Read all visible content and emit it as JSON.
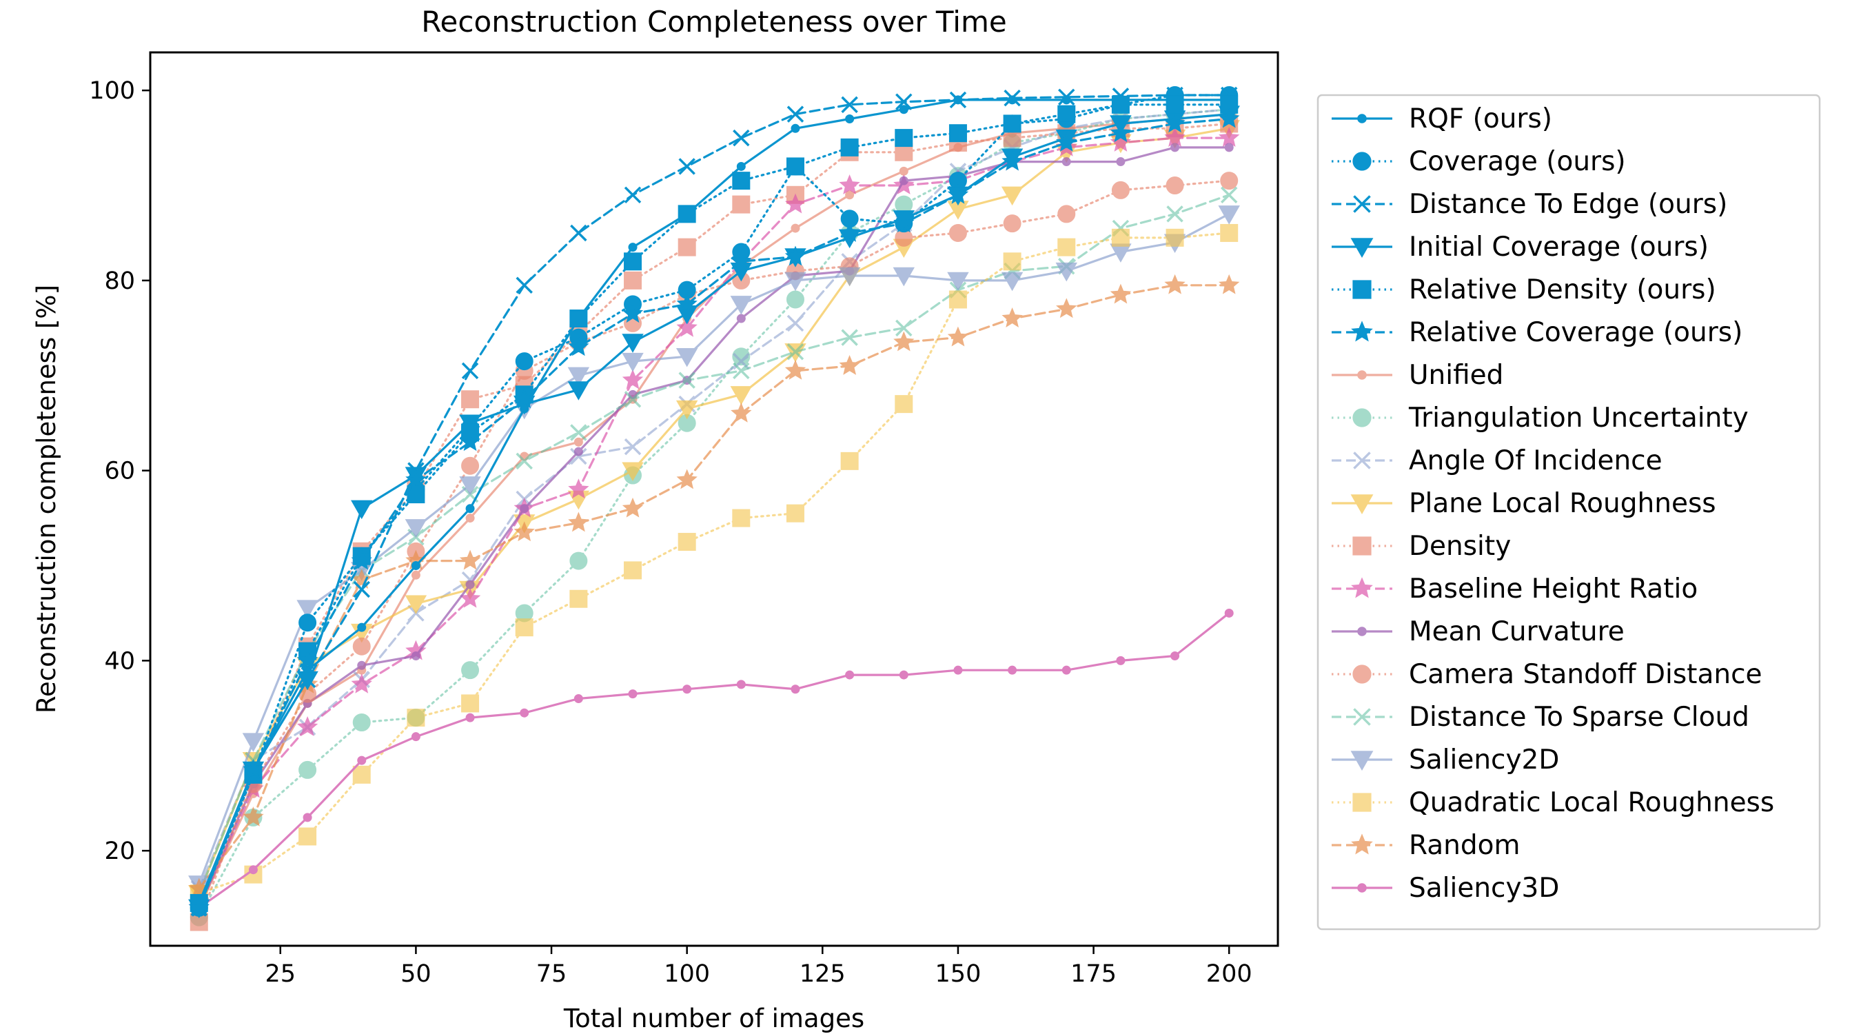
{
  "chart_data": {
    "type": "line",
    "title": "Reconstruction Completeness over Time",
    "xlabel": "Total number of images",
    "ylabel": "Reconstruction completeness [%]",
    "xlim": [
      1,
      209
    ],
    "ylim": [
      10,
      104
    ],
    "xticks": [
      25,
      50,
      75,
      100,
      125,
      150,
      175,
      200
    ],
    "yticks": [
      20,
      40,
      60,
      80,
      100
    ],
    "grid": false,
    "legend_position": "right, outside plot",
    "x": [
      10,
      20,
      30,
      40,
      50,
      60,
      70,
      80,
      90,
      100,
      110,
      120,
      130,
      140,
      150,
      160,
      170,
      180,
      190,
      200
    ],
    "series": [
      {
        "name": "RQF (ours)",
        "color": "#0b95cf",
        "alpha": 1.0,
        "linestyle": "solid",
        "marker": "point",
        "values": [
          14.5,
          28.5,
          39.0,
          43.5,
          50.0,
          56.0,
          66.5,
          76.0,
          83.5,
          87.0,
          92.0,
          96.0,
          97.0,
          98.0,
          99.0,
          99.0,
          99.0,
          99.0,
          99.0,
          99.0
        ]
      },
      {
        "name": "Coverage (ours)",
        "color": "#0b95cf",
        "alpha": 1.0,
        "linestyle": "dotted",
        "marker": "circle",
        "values": [
          14.0,
          28.0,
          44.0,
          51.0,
          58.0,
          64.5,
          71.5,
          74.0,
          77.5,
          79.0,
          83.0,
          92.0,
          86.5,
          86.0,
          90.5,
          96.5,
          97.0,
          98.5,
          99.5,
          99.5
        ]
      },
      {
        "name": "Distance To Edge (ours)",
        "color": "#0b95cf",
        "alpha": 1.0,
        "linestyle": "dashed",
        "marker": "x",
        "values": [
          14.0,
          28.5,
          38.0,
          47.5,
          60.0,
          70.5,
          79.5,
          85.0,
          89.0,
          92.0,
          95.0,
          97.5,
          98.5,
          98.8,
          99.0,
          99.2,
          99.3,
          99.4,
          99.5,
          99.5
        ]
      },
      {
        "name": "Initial Coverage (ours)",
        "color": "#0b95cf",
        "alpha": 1.0,
        "linestyle": "solid",
        "marker": "triangle-down",
        "values": [
          14.0,
          28.5,
          38.0,
          56.0,
          59.5,
          65.0,
          67.0,
          68.5,
          73.5,
          76.5,
          81.0,
          82.5,
          84.5,
          86.5,
          89.0,
          93.0,
          95.0,
          96.5,
          97.0,
          97.5
        ]
      },
      {
        "name": "Relative Density (ours)",
        "color": "#0b95cf",
        "alpha": 1.0,
        "linestyle": "dotted",
        "marker": "square",
        "values": [
          14.5,
          28.0,
          41.0,
          51.0,
          57.5,
          64.0,
          68.0,
          76.0,
          82.0,
          87.0,
          90.5,
          92.0,
          94.0,
          95.0,
          95.5,
          96.5,
          97.5,
          98.5,
          98.5,
          98.5
        ]
      },
      {
        "name": "Relative Coverage (ours)",
        "color": "#0b95cf",
        "alpha": 1.0,
        "linestyle": "dashed",
        "marker": "star",
        "values": [
          14.0,
          28.5,
          40.0,
          50.5,
          59.0,
          63.0,
          67.5,
          73.0,
          76.5,
          77.5,
          82.0,
          82.5,
          85.0,
          86.0,
          89.0,
          92.5,
          94.5,
          95.5,
          96.5,
          97.0
        ]
      },
      {
        "name": "Unified",
        "color": "#e8846c",
        "alpha": 0.65,
        "linestyle": "solid",
        "marker": "point",
        "values": [
          14.0,
          26.0,
          35.5,
          39.0,
          49.0,
          55.0,
          61.5,
          63.0,
          67.5,
          76.0,
          81.5,
          85.5,
          89.0,
          91.5,
          94.0,
          95.5,
          96.0,
          96.5,
          97.0,
          97.5
        ]
      },
      {
        "name": "Triangulation Uncertainty",
        "color": "#5cbf9f",
        "alpha": 0.55,
        "linestyle": "dotted",
        "marker": "circle",
        "values": [
          13.0,
          23.5,
          28.5,
          33.5,
          34.0,
          39.0,
          45.0,
          50.5,
          59.5,
          65.0,
          72.0,
          78.0,
          85.0,
          88.0,
          91.0,
          94.5,
          95.5,
          97.0,
          97.5,
          98.0
        ]
      },
      {
        "name": "Angle Of Incidence",
        "color": "#8ea3cf",
        "alpha": 0.6,
        "linestyle": "dashed",
        "marker": "x",
        "values": [
          16.0,
          29.5,
          33.0,
          38.0,
          45.0,
          48.5,
          57.0,
          61.5,
          62.5,
          67.0,
          71.5,
          75.5,
          82.0,
          86.0,
          91.5,
          94.0,
          96.0,
          97.0,
          97.5,
          98.0
        ]
      },
      {
        "name": "Plane Local Roughness",
        "color": "#f5c44d",
        "alpha": 0.7,
        "linestyle": "solid",
        "marker": "triangle-down",
        "values": [
          15.5,
          29.5,
          39.5,
          43.0,
          46.0,
          47.5,
          54.5,
          57.0,
          60.0,
          66.5,
          68.0,
          72.5,
          80.5,
          83.5,
          87.5,
          89.0,
          93.5,
          94.5,
          95.0,
          96.0
        ]
      },
      {
        "name": "Density",
        "color": "#e8846c",
        "alpha": 0.65,
        "linestyle": "dotted",
        "marker": "square",
        "values": [
          12.5,
          28.0,
          41.5,
          51.5,
          58.0,
          67.5,
          69.0,
          74.5,
          80.0,
          83.5,
          88.0,
          89.0,
          93.5,
          93.5,
          94.5,
          95.0,
          95.5,
          96.0,
          96.0,
          96.5
        ]
      },
      {
        "name": "Baseline Height Ratio",
        "color": "#dd5aad",
        "alpha": 0.7,
        "linestyle": "dashed",
        "marker": "star",
        "values": [
          14.0,
          26.5,
          33.0,
          37.5,
          41.0,
          46.5,
          56.0,
          58.0,
          69.5,
          75.0,
          82.0,
          88.0,
          90.0,
          90.0,
          90.5,
          92.5,
          94.0,
          94.5,
          95.0,
          95.0
        ]
      },
      {
        "name": "Mean Curvature",
        "color": "#9e62b4",
        "alpha": 0.75,
        "linestyle": "solid",
        "marker": "point",
        "values": [
          14.0,
          27.0,
          35.5,
          39.5,
          40.5,
          48.0,
          56.0,
          62.0,
          68.0,
          69.5,
          76.0,
          80.5,
          81.0,
          90.5,
          91.0,
          92.5,
          92.5,
          92.5,
          94.0,
          94.0
        ]
      },
      {
        "name": "Camera Standoff Distance",
        "color": "#e8846c",
        "alpha": 0.65,
        "linestyle": "dotted",
        "marker": "circle",
        "values": [
          14.0,
          27.0,
          36.5,
          41.5,
          51.5,
          60.5,
          70.5,
          73.5,
          75.5,
          78.5,
          80.0,
          81.0,
          81.5,
          84.5,
          85.0,
          86.0,
          87.0,
          89.5,
          90.0,
          90.5
        ]
      },
      {
        "name": "Distance To Sparse Cloud",
        "color": "#5cbf9f",
        "alpha": 0.55,
        "linestyle": "dashed",
        "marker": "x",
        "values": [
          15.5,
          29.5,
          41.0,
          49.5,
          53.0,
          57.5,
          61.0,
          64.0,
          67.5,
          69.5,
          70.5,
          72.5,
          74.0,
          75.0,
          79.0,
          81.0,
          81.5,
          85.5,
          87.0,
          89.0
        ]
      },
      {
        "name": "Saliency2D",
        "color": "#8ea3cf",
        "alpha": 0.7,
        "linestyle": "solid",
        "marker": "triangle-down",
        "values": [
          16.5,
          31.5,
          45.5,
          49.5,
          54.0,
          58.5,
          66.5,
          70.0,
          71.5,
          72.0,
          77.5,
          80.0,
          80.5,
          80.5,
          80.0,
          80.0,
          81.0,
          83.0,
          84.0,
          87.0
        ]
      },
      {
        "name": "Quadratic Local Roughness",
        "color": "#f5c44d",
        "alpha": 0.6,
        "linestyle": "dotted",
        "marker": "square",
        "values": [
          15.5,
          17.5,
          21.5,
          28.0,
          34.0,
          35.5,
          43.5,
          46.5,
          49.5,
          52.5,
          55.0,
          55.5,
          61.0,
          67.0,
          78.0,
          82.0,
          83.5,
          84.5,
          84.5,
          85.0
        ]
      },
      {
        "name": "Random",
        "color": "#e8904f",
        "alpha": 0.7,
        "linestyle": "dashed",
        "marker": "star",
        "values": [
          16.0,
          23.5,
          37.5,
          48.5,
          50.5,
          50.5,
          53.5,
          54.5,
          56.0,
          59.0,
          66.0,
          70.5,
          71.0,
          73.5,
          74.0,
          76.0,
          77.0,
          78.5,
          79.5,
          79.5
        ]
      },
      {
        "name": "Saliency3D",
        "color": "#dd7fbf",
        "alpha": 1.0,
        "linestyle": "solid",
        "marker": "point",
        "values": [
          14.0,
          18.0,
          23.5,
          29.5,
          32.0,
          34.0,
          34.5,
          36.0,
          36.5,
          37.0,
          37.5,
          37.0,
          38.5,
          38.5,
          39.0,
          39.0,
          39.0,
          40.0,
          40.5,
          45.0
        ]
      }
    ]
  }
}
